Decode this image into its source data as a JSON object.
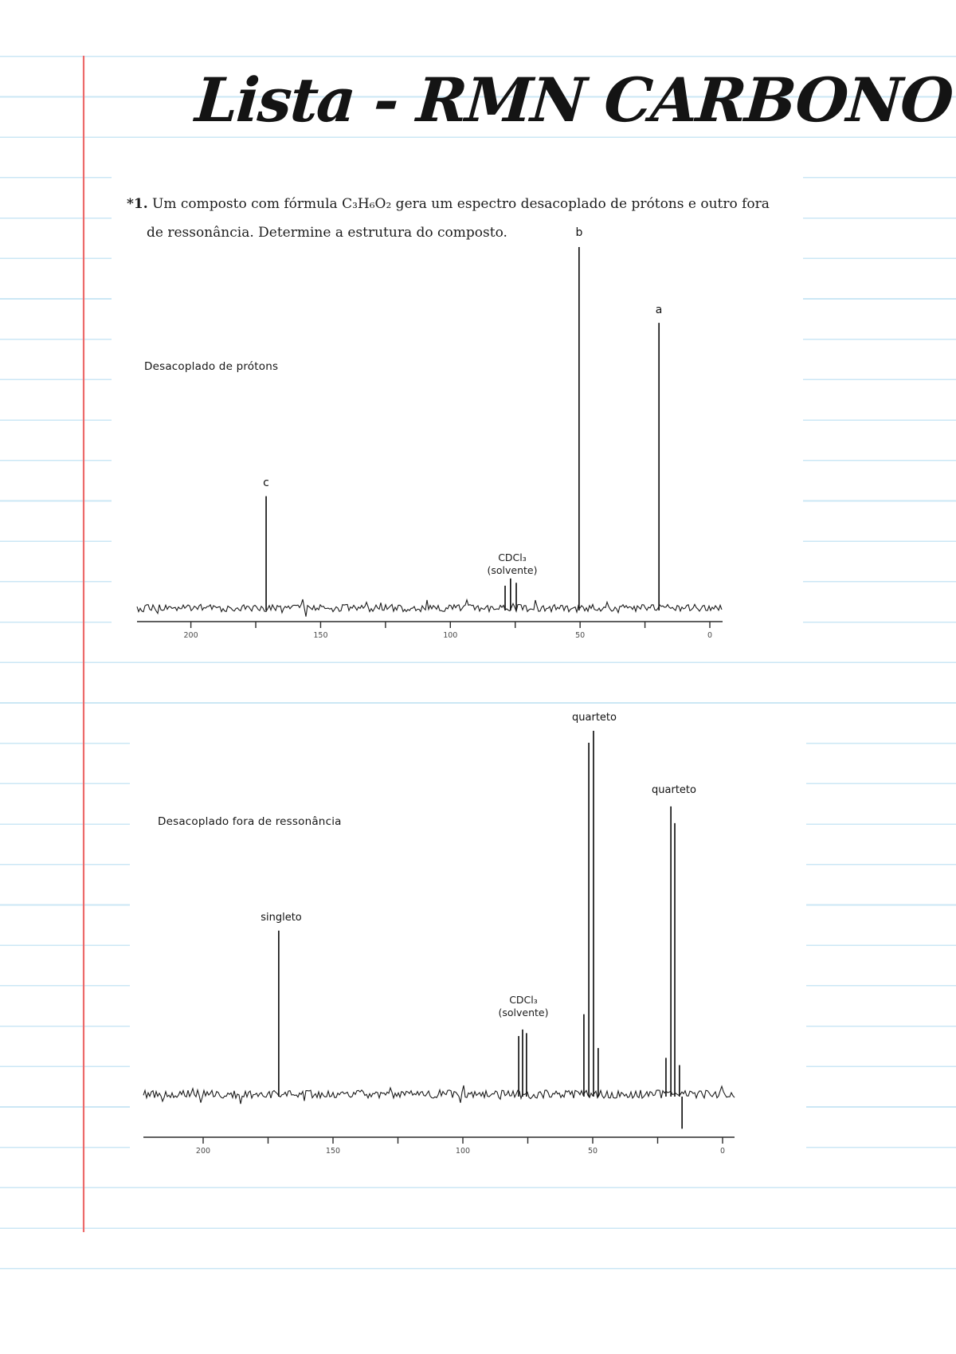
{
  "page": {
    "title": "Lista - RMN CARBONO"
  },
  "problem": {
    "number": "*1.",
    "line1": "Um composto com fórmula C₃H₆O₂ gera um espectro desacoplado de prótons e outro fora",
    "line2": "de ressonância. Determine a estrutura do composto."
  },
  "chart_data": [
    {
      "type": "line",
      "subtype": "13C-NMR-spectrum",
      "label": "Desacoplado de prótons",
      "x_axis": {
        "direction": "right-to-left",
        "range_ppm": [
          220,
          -5
        ],
        "tick_labels": [
          "200",
          "150",
          "100",
          "50",
          "0"
        ],
        "tick_ppm": [
          200,
          150,
          100,
          50,
          0
        ],
        "all_tick_ppm": [
          200,
          175,
          150,
          125,
          100,
          75,
          50,
          25,
          0
        ],
        "grid": false
      },
      "peaks": [
        {
          "id": "peak-c",
          "label": "c",
          "lines": [
            [
              171.0,
              0.31
            ]
          ]
        },
        {
          "id": "peak-b",
          "label": "b",
          "lines": [
            [
              50.4,
              1.0
            ]
          ]
        },
        {
          "id": "peak-a",
          "label": "a",
          "lines": [
            [
              19.6,
              0.79
            ]
          ]
        },
        {
          "id": "solvent",
          "label_line1": "CDCl₃",
          "label_line2": "(solvente)",
          "lines": [
            [
              78.9,
              0.062
            ],
            [
              76.8,
              0.082
            ],
            [
              74.6,
              0.07
            ]
          ]
        }
      ]
    },
    {
      "type": "line",
      "subtype": "13C-NMR-spectrum",
      "label": "Desacoplado fora de ressonância",
      "x_axis": {
        "direction": "right-to-left",
        "range_ppm": [
          222,
          -5
        ],
        "tick_labels": [
          "200",
          "150",
          "100",
          "50",
          "0"
        ],
        "tick_ppm": [
          200,
          150,
          100,
          50,
          0
        ],
        "all_tick_ppm": [
          200,
          175,
          150,
          125,
          100,
          75,
          50,
          25,
          0
        ],
        "grid": false
      },
      "peaks": [
        {
          "id": "singlet",
          "label": "singleto",
          "lines": [
            [
              170.9,
              0.45
            ]
          ]
        },
        {
          "id": "solvent",
          "label_line1": "CDCl₃",
          "label_line2": "(solvente)",
          "lines": [
            [
              78.5,
              0.16
            ],
            [
              77.0,
              0.178
            ],
            [
              75.5,
              0.168
            ]
          ]
        },
        {
          "id": "quartet-b",
          "label": "quarteto",
          "lines": [
            [
              53.4,
              0.22
            ],
            [
              51.5,
              0.967
            ],
            [
              49.7,
              1.0
            ],
            [
              47.9,
              0.127
            ]
          ]
        },
        {
          "id": "quartet-a",
          "label": "quarteto",
          "lines": [
            [
              21.8,
              0.1
            ],
            [
              19.9,
              0.792
            ],
            [
              18.4,
              0.746
            ],
            [
              16.6,
              0.08
            ],
            [
              15.6,
              -0.095
            ]
          ]
        }
      ]
    }
  ]
}
